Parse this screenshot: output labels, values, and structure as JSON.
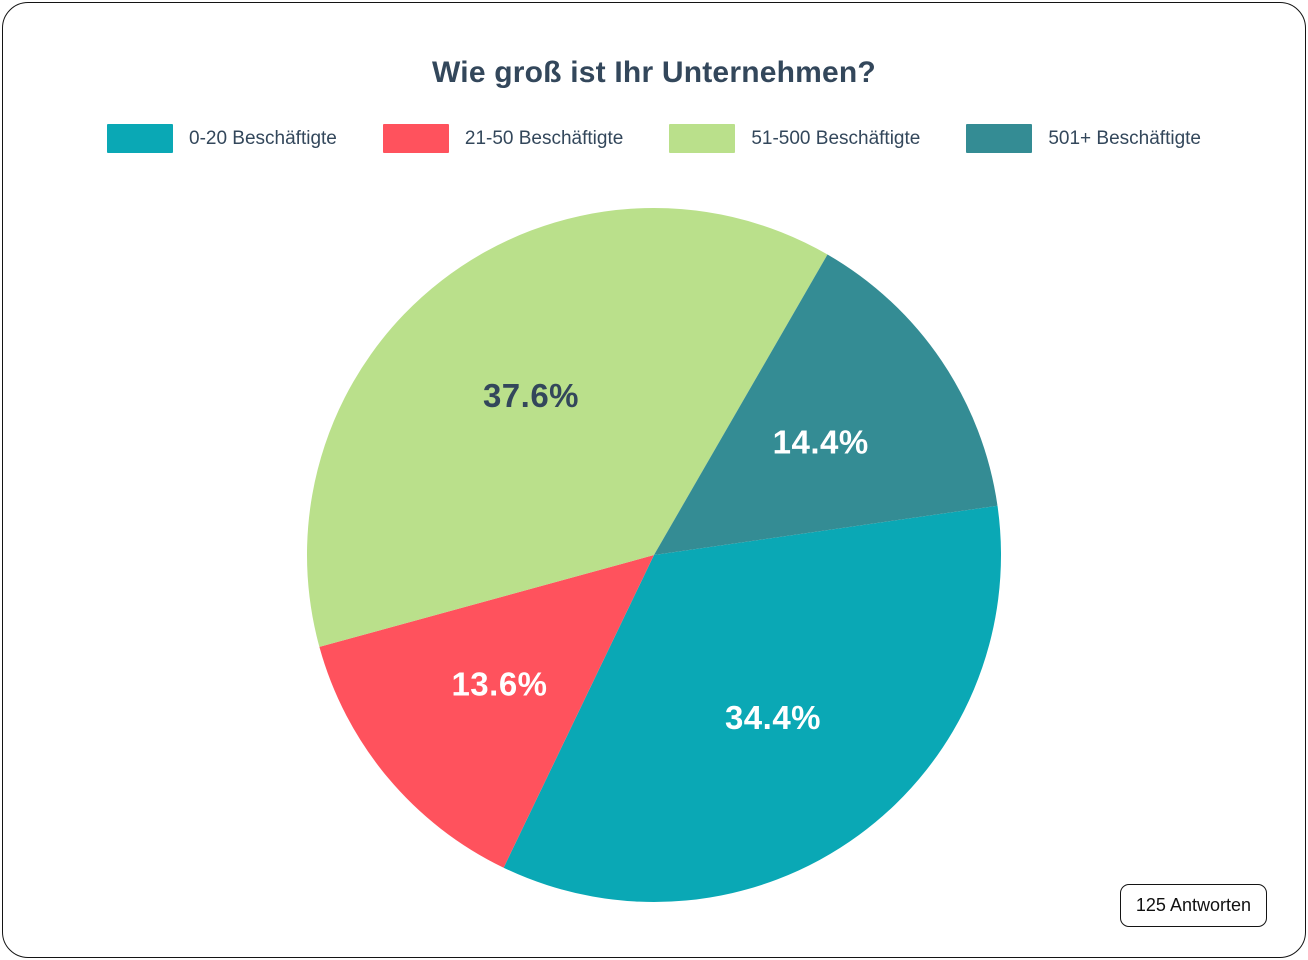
{
  "chart_data": {
    "type": "pie",
    "title": "Wie groß ist Ihr Unternehmen?",
    "series": [
      {
        "name": "0-20 Beschäftigte",
        "value": 34.4,
        "label": "34.4%",
        "color": "#0AA8B5",
        "label_color": "#FFFFFF"
      },
      {
        "name": "21-50 Beschäftigte",
        "value": 13.6,
        "label": "13.6%",
        "color": "#FF525D",
        "label_color": "#FFFFFF"
      },
      {
        "name": "51-500 Beschäftigte",
        "value": 37.6,
        "label": "37.6%",
        "color": "#BAE08B",
        "label_color": "#33475B"
      },
      {
        "name": "501+ Beschäftigte",
        "value": 14.4,
        "label": "14.4%",
        "color": "#348C94",
        "label_color": "#FFFFFF"
      }
    ],
    "start_angle_deg": 81.84,
    "legend_position": "top",
    "annotation": "125 Antworten"
  }
}
